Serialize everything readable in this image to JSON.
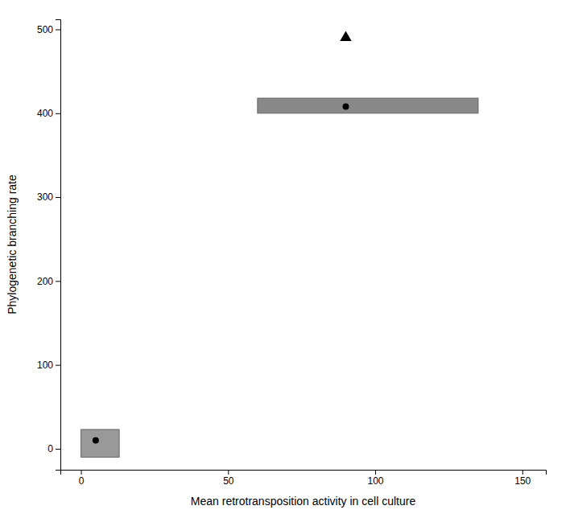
{
  "chart_data": {
    "type": "scatter",
    "xlabel": "Mean retrotransposition activity in cell culture",
    "ylabel": "Phylogenetic branching rate",
    "xlim": [
      -7,
      158
    ],
    "ylim": [
      -25,
      512
    ],
    "xticks": [
      0,
      50,
      100,
      150
    ],
    "yticks": [
      0,
      100,
      200,
      300,
      400,
      500
    ],
    "grid": false,
    "series": [
      {
        "type": "box",
        "x_min": [
          0,
          60
        ],
        "x_max": [
          13,
          135
        ],
        "y_min": [
          -10,
          400
        ],
        "y_max": [
          23,
          418
        ],
        "colors": [
          "#999999",
          "#888888"
        ],
        "color": "#666666"
      },
      {
        "type": "scatter",
        "x": [
          5,
          90
        ],
        "values": [
          10,
          408
        ],
        "color": "#000000",
        "marker": "circle"
      },
      {
        "type": "scatter",
        "x": [
          90
        ],
        "values": [
          490
        ],
        "color": "#000000",
        "marker": "triangle"
      }
    ]
  }
}
